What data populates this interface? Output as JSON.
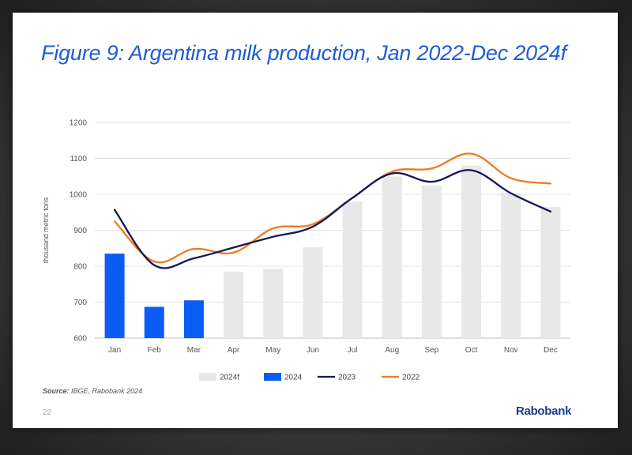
{
  "slide": {
    "title": "Figure 9: Argentina milk production, Jan 2022-Dec 2024f",
    "source_label": "Source:",
    "source_text": "IBGE, Rabobank 2024",
    "page_number": "22",
    "brand": "Rabobank"
  },
  "chart_data": {
    "type": "bar",
    "title": "Figure 9: Argentina milk production, Jan 2022-Dec 2024f",
    "xlabel": "",
    "ylabel": "thousand metric tons",
    "ylim": [
      600,
      1200
    ],
    "yticks": [
      600,
      700,
      800,
      900,
      1000,
      1100,
      1200
    ],
    "grid": true,
    "legend_position": "bottom",
    "categories": [
      "Jan",
      "Feb",
      "Mar",
      "Apr",
      "May",
      "Jun",
      "Jul",
      "Aug",
      "Sep",
      "Oct",
      "Nov",
      "Dec"
    ],
    "bars": [
      {
        "name": "2024f",
        "color": "#e8e8e8",
        "values": [
          null,
          null,
          null,
          785,
          793,
          853,
          980,
          1050,
          1025,
          1080,
          1005,
          965
        ]
      },
      {
        "name": "2024",
        "color": "#0a5cf5",
        "values": [
          835,
          687,
          705,
          null,
          null,
          null,
          null,
          null,
          null,
          null,
          null,
          null
        ]
      }
    ],
    "lines": [
      {
        "name": "2023",
        "color": "#141757",
        "values": [
          957,
          803,
          822,
          852,
          882,
          910,
          990,
          1058,
          1035,
          1067,
          1003,
          952
        ]
      },
      {
        "name": "2022",
        "color": "#ef7a1e",
        "values": [
          925,
          813,
          848,
          838,
          905,
          917,
          990,
          1063,
          1072,
          1113,
          1045,
          1030
        ]
      }
    ],
    "legend": [
      "2024f",
      "2024",
      "2023",
      "2022"
    ]
  }
}
